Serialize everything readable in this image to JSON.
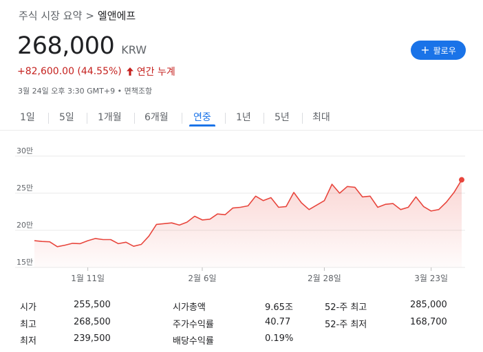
{
  "breadcrumb": {
    "section": "주식 시장 요약",
    "separator": ">",
    "company": "엘앤에프"
  },
  "quote": {
    "price": "268,000",
    "currency": "KRW",
    "change": "+82,600.00 (44.55%)",
    "period": "연간 누계",
    "timestamp": "3월 24일 오후 3:30 GMT+9",
    "bullet": "•",
    "disclaimer": "면책조항",
    "change_color": "#c5221f"
  },
  "follow_button": {
    "icon": "plus-icon",
    "label": "팔로우"
  },
  "tabs": [
    {
      "label": "1일"
    },
    {
      "label": "5일"
    },
    {
      "label": "1개월"
    },
    {
      "label": "6개월"
    },
    {
      "label": "연중",
      "active": true
    },
    {
      "label": "1년"
    },
    {
      "label": "5년"
    },
    {
      "label": "최대"
    }
  ],
  "chart_data": {
    "type": "area",
    "y_ticks": [
      "15만",
      "20만",
      "25만",
      "30만"
    ],
    "y_tick_values": [
      150000,
      200000,
      250000,
      300000
    ],
    "ylim": [
      150000,
      300000
    ],
    "x_ticks": [
      {
        "label": "1월 11일",
        "index": 7
      },
      {
        "label": "2월 6일",
        "index": 22
      },
      {
        "label": "2월 28일",
        "index": 38
      },
      {
        "label": "3월 23일",
        "index": 52
      }
    ],
    "series": [
      {
        "color": "#e8453c",
        "values": [
          186000,
          185000,
          184500,
          178000,
          180000,
          182500,
          182000,
          186000,
          189000,
          187500,
          187500,
          182000,
          184000,
          178500,
          181000,
          192000,
          208000,
          209000,
          210000,
          207000,
          211000,
          219000,
          214000,
          215000,
          222000,
          221000,
          230000,
          231000,
          233000,
          246000,
          240000,
          244000,
          231000,
          232000,
          251000,
          237000,
          228000,
          234000,
          240000,
          262000,
          250000,
          259000,
          258000,
          245000,
          246000,
          231000,
          235000,
          236000,
          228000,
          231000,
          245000,
          232000,
          226000,
          228000,
          238000,
          251000,
          268000
        ]
      }
    ],
    "grid": true
  },
  "stats": {
    "col1": [
      {
        "label": "시가",
        "value": "255,500"
      },
      {
        "label": "최고",
        "value": "268,500"
      },
      {
        "label": "최저",
        "value": "239,500"
      }
    ],
    "col2": [
      {
        "label": "시가총액",
        "value": "9.65조"
      },
      {
        "label": "주가수익률",
        "value": "40.77"
      },
      {
        "label": "배당수익률",
        "value": "0.19%"
      }
    ],
    "col3": [
      {
        "label": "52-주 최고",
        "value": "285,000"
      },
      {
        "label": "52-주 최저",
        "value": "168,700"
      }
    ]
  }
}
